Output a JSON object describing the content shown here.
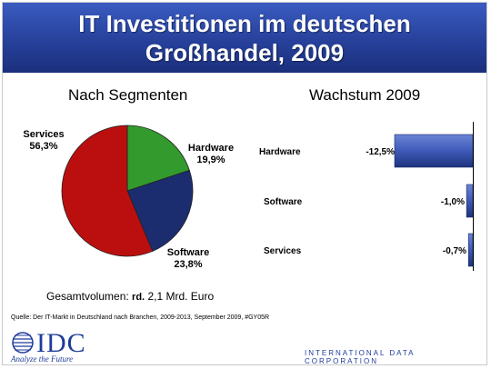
{
  "title": {
    "line1": "IT Investitionen im deutschen",
    "line2": "Großhandel, 2009"
  },
  "pie_subtitle": "Nach Segmenten",
  "bar_subtitle": "Wachstum 2009",
  "total": {
    "prefix": "Gesamtvolumen: ",
    "bold": "rd.",
    "value": " 2,1 Mrd. Euro"
  },
  "source": "Quelle: Der IT-Markt in Deutschland nach Branchen, 2009-2013, September 2009, #GY05R",
  "logo": {
    "text": "IDC",
    "tagline": "Analyze the Future",
    "corp": "INTERNATIONAL DATA CORPORATION"
  },
  "colors": {
    "hardware": "#339a2e",
    "software": "#1b2d6e",
    "services": "#bb0f0f",
    "bar": "#3e5ab8",
    "header": "#27419b"
  },
  "chart_data": [
    {
      "type": "pie",
      "title": "Nach Segmenten",
      "slices": [
        {
          "label": "Hardware",
          "value": 19.9,
          "display": "19,9%"
        },
        {
          "label": "Software",
          "value": 23.8,
          "display": "23,8%"
        },
        {
          "label": "Services",
          "value": 56.3,
          "display": "56,3%"
        }
      ]
    },
    {
      "type": "bar",
      "orientation": "horizontal",
      "title": "Wachstum 2009",
      "categories": [
        "Hardware",
        "Software",
        "Services"
      ],
      "values": [
        -12.5,
        -1.0,
        -0.7
      ],
      "labels": [
        "-12,5%",
        "-1,0%",
        "-0,7%"
      ]
    }
  ]
}
